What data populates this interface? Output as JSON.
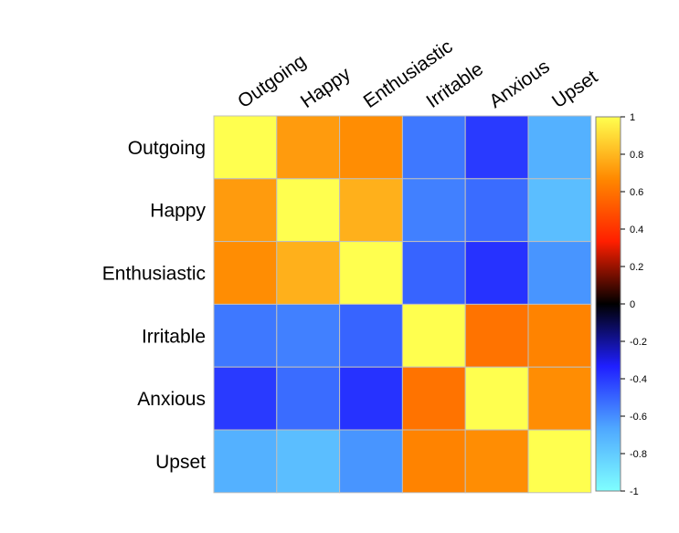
{
  "chart_data": {
    "type": "heatmap",
    "title": "",
    "rows": [
      "Outgoing",
      "Happy",
      "Enthusiastic",
      "Irritable",
      "Anxious",
      "Upset"
    ],
    "cols": [
      "Outgoing",
      "Happy",
      "Enthusiastic",
      "Irritable",
      "Anxious",
      "Upset"
    ],
    "values": [
      [
        1.0,
        0.72,
        0.68,
        -0.55,
        -0.4,
        -0.7
      ],
      [
        0.72,
        1.0,
        0.78,
        -0.57,
        -0.52,
        -0.75
      ],
      [
        0.68,
        0.78,
        1.0,
        -0.5,
        -0.38,
        -0.62
      ],
      [
        -0.55,
        -0.57,
        -0.5,
        1.0,
        0.6,
        0.65
      ],
      [
        -0.4,
        -0.52,
        -0.38,
        0.6,
        1.0,
        0.68
      ],
      [
        -0.7,
        -0.75,
        -0.62,
        0.65,
        0.68,
        1.0
      ]
    ],
    "colorbar": {
      "range": [
        -1,
        1
      ],
      "ticks": [
        "1",
        "0.8",
        "0.6",
        "0.4",
        "0.2",
        "0",
        "-0.2",
        "-0.4",
        "-0.6",
        "-0.8",
        "-1"
      ],
      "stops": [
        "#7FFFFF",
        "#4FA8FF",
        "#1F1FFF",
        "#000000",
        "#FF1F00",
        "#FF8800",
        "#FFFF4F"
      ]
    }
  }
}
